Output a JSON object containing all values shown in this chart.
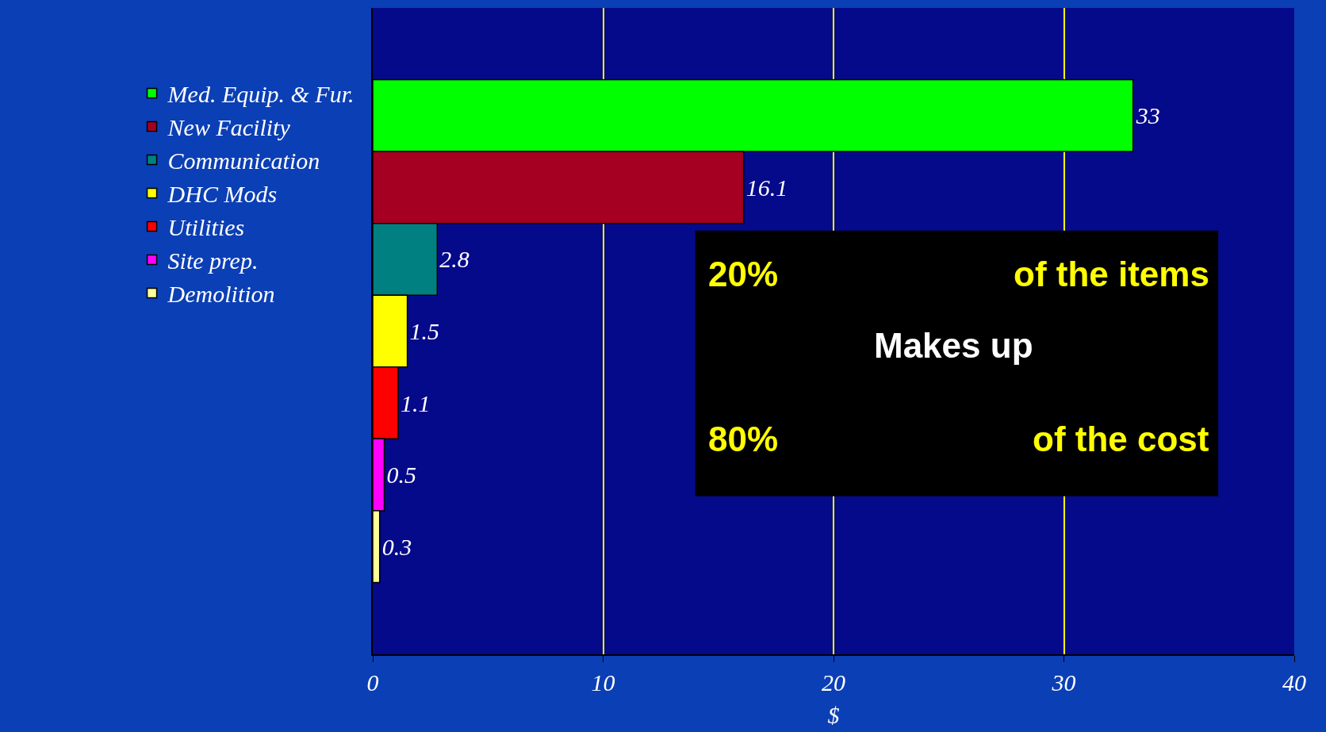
{
  "chart_data": {
    "type": "bar",
    "orientation": "horizontal",
    "categories": [
      null,
      null,
      null,
      null,
      null,
      null,
      null,
      null,
      null
    ],
    "series": [
      {
        "name": "Med. Equip. & Fur.",
        "color": "#00ff00",
        "values": [
          null,
          33,
          null,
          null,
          null,
          null,
          null,
          null,
          null
        ]
      },
      {
        "name": "New Facility",
        "color": "#a50021",
        "values": [
          null,
          null,
          16.1,
          null,
          null,
          null,
          null,
          null,
          null
        ]
      },
      {
        "name": "Communication",
        "color": "#008080",
        "values": [
          null,
          null,
          null,
          2.8,
          null,
          null,
          null,
          null,
          null
        ]
      },
      {
        "name": "DHC Mods",
        "color": "#ffff00",
        "values": [
          null,
          null,
          null,
          null,
          1.5,
          null,
          null,
          null,
          null
        ]
      },
      {
        "name": "Utilities",
        "color": "#ff0000",
        "values": [
          null,
          null,
          null,
          null,
          null,
          1.1,
          null,
          null,
          null
        ]
      },
      {
        "name": "Site prep.",
        "color": "#ff00ff",
        "values": [
          null,
          null,
          null,
          null,
          null,
          null,
          0.5,
          null,
          null
        ]
      },
      {
        "name": "Demolition",
        "color": "#ffff99",
        "values": [
          null,
          null,
          null,
          null,
          null,
          null,
          null,
          0.3,
          null
        ]
      }
    ],
    "xlim": [
      0,
      40
    ],
    "xticks": [
      0,
      10,
      20,
      30,
      40
    ],
    "xlabel": "$",
    "grid": "x",
    "legend": "left",
    "tick_labels": "x",
    "data_labels": true,
    "annotations": [
      "20%",
      "of the items",
      "Makes up",
      "80%",
      "of the cost"
    ]
  }
}
